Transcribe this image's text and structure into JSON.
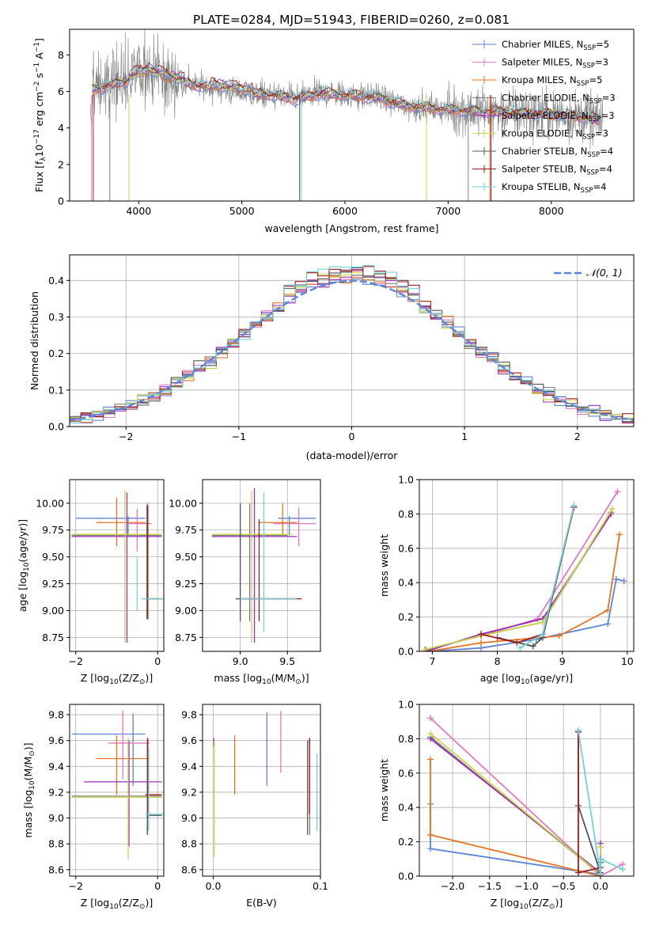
{
  "title": "PLATE=0284, MJD=51943, FIBERID=0260, z=0.081",
  "colors": {
    "chabrier_miles": "#5b86d8",
    "salpeter_miles": "#e377c2",
    "kroupa_miles": "#e8731f",
    "chabrier_elodie": "#7f7f7f",
    "salpeter_elodie": "#9a2fb5",
    "kroupa_elodie": "#c9d64a",
    "chabrier_stelib": "#555555",
    "salpeter_stelib": "#a11a1a",
    "kroupa_stelib": "#6fd2dc",
    "normal": "#5b86d8"
  },
  "chart_data": [
    {
      "id": "spectrum",
      "type": "line",
      "xlabel": "wavelength [Angstrom, rest frame]",
      "ylabel": "Flux [f_λ 10^-17 erg cm^-2 s^-1 A^-1]",
      "xlim": [
        3330,
        8800
      ],
      "ylim": [
        0,
        9.4
      ],
      "xticks": [
        4000,
        5000,
        6000,
        7000,
        8000
      ],
      "yticks": [
        0,
        2,
        4,
        6,
        8
      ],
      "grid": false,
      "legend_position": "top-right",
      "legend": [
        {
          "label": "Chabrier MILES, N",
          "sub": "SSP",
          "suffix": "=5",
          "color": "#5b86d8"
        },
        {
          "label": "Salpeter MILES, N",
          "sub": "SSP",
          "suffix": "=3",
          "color": "#e377c2"
        },
        {
          "label": "Kroupa MILES, N",
          "sub": "SSP",
          "suffix": "=5",
          "color": "#e8731f"
        },
        {
          "label": "Chabrier ELODIE, N",
          "sub": "SSP",
          "suffix": "=3",
          "color": "#7f7f7f"
        },
        {
          "label": "Salpeter ELODIE, N",
          "sub": "SSP",
          "suffix": "=3",
          "color": "#9a2fb5"
        },
        {
          "label": "Kroupa ELODIE, N",
          "sub": "SSP",
          "suffix": "=3",
          "color": "#c9d64a"
        },
        {
          "label": "Chabrier STELIB, N",
          "sub": "SSP",
          "suffix": "=4",
          "color": "#555555"
        },
        {
          "label": "Salpeter STELIB, N",
          "sub": "SSP",
          "suffix": "=4",
          "color": "#a11a1a"
        },
        {
          "label": "Kroupa STELIB, N",
          "sub": "SSP",
          "suffix": "=4",
          "color": "#6fd2dc"
        }
      ],
      "continuum": [
        [
          3550,
          6.1
        ],
        [
          3700,
          6.3
        ],
        [
          3900,
          6.6
        ],
        [
          4100,
          7.0
        ],
        [
          4300,
          6.6
        ],
        [
          4500,
          6.4
        ],
        [
          4800,
          6.1
        ],
        [
          5000,
          5.9
        ],
        [
          5300,
          5.8
        ],
        [
          5500,
          5.6
        ],
        [
          5800,
          5.9
        ],
        [
          6000,
          5.8
        ],
        [
          6300,
          5.7
        ],
        [
          6600,
          5.2
        ],
        [
          7000,
          5.0
        ],
        [
          7400,
          4.9
        ],
        [
          7800,
          4.8
        ],
        [
          8200,
          4.7
        ],
        [
          8500,
          4.4
        ]
      ]
    },
    {
      "id": "residual_histogram",
      "type": "line",
      "xlabel": "(data-model)/error",
      "ylabel": "Normed distribution",
      "xlim": [
        -2.5,
        2.5
      ],
      "ylim": [
        0,
        0.47
      ],
      "xticks": [
        -2,
        -1,
        0,
        1,
        2
      ],
      "yticks": [
        0.0,
        0.1,
        0.2,
        0.3,
        0.4
      ],
      "grid": true,
      "legend_position": "top-right",
      "legend_label": "𝒩(0, 1)",
      "normal_curve": {
        "mean": 0,
        "sigma": 1
      }
    },
    {
      "id": "age_vs_Z",
      "type": "scatter",
      "xlabel": "Z [log10(Z/Z⊙)]",
      "ylabel": "age [log10(age/yr)]",
      "xlim": [
        -2.15,
        0.15
      ],
      "ylim": [
        8.62,
        10.22
      ],
      "xticks": [
        -2,
        0
      ],
      "yticks": [
        8.75,
        9.0,
        9.25,
        9.5,
        9.75,
        10.0
      ],
      "grid": true
    },
    {
      "id": "age_vs_mass",
      "type": "scatter",
      "xlabel": "mass [log10(M/M⊙)]",
      "ylabel": "",
      "xlim": [
        8.6,
        9.85
      ],
      "ylim": [
        8.62,
        10.22
      ],
      "xticks": [
        9.0,
        9.5
      ],
      "yticks": [
        8.75,
        9.0,
        9.25,
        9.5,
        9.75,
        10.0
      ],
      "grid": true
    },
    {
      "id": "mass_weight_vs_age",
      "type": "line",
      "xlabel": "age [log10(age/yr)]",
      "ylabel": "mass weight",
      "xlim": [
        6.8,
        10.1
      ],
      "ylim": [
        0,
        1
      ],
      "xticks": [
        7,
        8,
        9,
        10
      ],
      "yticks": [
        0.0,
        0.2,
        0.4,
        0.6,
        0.8,
        1.0
      ],
      "grid": true,
      "series": [
        {
          "color": "#5b86d8",
          "x": [
            6.95,
            7.75,
            8.6,
            9.7,
            9.83,
            9.95
          ],
          "y": [
            0.0,
            0.02,
            0.07,
            0.16,
            0.42,
            0.41
          ]
        },
        {
          "color": "#e377c2",
          "x": [
            7.75,
            8.62,
            9.85
          ],
          "y": [
            0.09,
            0.19,
            0.93
          ]
        },
        {
          "color": "#e8731f",
          "x": [
            6.95,
            7.75,
            8.95,
            9.7,
            9.88
          ],
          "y": [
            0.0,
            0.05,
            0.09,
            0.24,
            0.68
          ]
        },
        {
          "color": "#7f7f7f",
          "x": [
            6.9,
            7.75,
            8.7,
            9.75
          ],
          "y": [
            0.01,
            0.09,
            0.17,
            0.81
          ]
        },
        {
          "color": "#9a2fb5",
          "x": [
            6.9,
            7.75,
            8.7,
            9.75
          ],
          "y": [
            0.0,
            0.1,
            0.19,
            0.8
          ]
        },
        {
          "color": "#c9d64a",
          "x": [
            6.88,
            7.75,
            8.7,
            9.77
          ],
          "y": [
            0.01,
            0.09,
            0.17,
            0.83
          ]
        },
        {
          "color": "#555555",
          "x": [
            8.0,
            8.55,
            8.7,
            9.18
          ],
          "y": [
            0.08,
            0.03,
            0.08,
            0.84
          ]
        },
        {
          "color": "#a11a1a",
          "x": [
            7.75,
            8.3,
            8.7,
            9.18
          ],
          "y": [
            0.1,
            0.05,
            0.1,
            0.84
          ]
        },
        {
          "color": "#6fd2dc",
          "x": [
            8.35,
            8.7,
            9.18
          ],
          "y": [
            0.02,
            0.1,
            0.85
          ]
        }
      ]
    },
    {
      "id": "mass_vs_Z",
      "type": "scatter",
      "xlabel": "Z [log10(Z/Z⊙)]",
      "ylabel": "mass [log10(M/M⊙)]",
      "xlim": [
        -2.15,
        0.15
      ],
      "ylim": [
        8.55,
        9.88
      ],
      "xticks": [
        -2,
        0
      ],
      "yticks": [
        8.6,
        8.8,
        9.0,
        9.2,
        9.4,
        9.6,
        9.8
      ],
      "grid": true
    },
    {
      "id": "mass_vs_ebv",
      "type": "scatter",
      "xlabel": "E(B-V)",
      "ylabel": "",
      "xlim": [
        -0.01,
        0.1
      ],
      "ylim": [
        8.55,
        9.88
      ],
      "xticks": [
        0.0,
        0.1
      ],
      "yticks": [
        8.6,
        8.8,
        9.0,
        9.2,
        9.4,
        9.6,
        9.8
      ],
      "grid": true,
      "errorbars": [
        {
          "color": "#5b86d8",
          "x": 0.05,
          "y0": 9.25,
          "y1": 9.82
        },
        {
          "color": "#e377c2",
          "x": 0.063,
          "y0": 9.35,
          "y1": 9.83
        },
        {
          "color": "#e8731f",
          "x": 0.02,
          "y0": 9.18,
          "y1": 9.64
        },
        {
          "color": "#7f7f7f",
          "x": 0.09,
          "y0": 8.87,
          "y1": 9.62
        },
        {
          "color": "#a11a1a",
          "x": 0.0898,
          "y0": 9.03,
          "y1": 9.62
        },
        {
          "color": "#555555",
          "x": 0.088,
          "y0": 8.87,
          "y1": 9.6
        },
        {
          "color": "#6fd2dc",
          "x": 0.0968,
          "y0": 8.9,
          "y1": 9.5
        },
        {
          "color": "#9a2fb5",
          "x": 0.0005,
          "y0": 9.55,
          "y1": 9.62
        },
        {
          "color": "#c9d64a",
          "x": 0.001,
          "y0": 8.7,
          "y1": 9.6
        }
      ]
    },
    {
      "id": "mass_weight_vs_Z",
      "type": "line",
      "xlabel": "Z [log10(Z/Z⊙)]",
      "ylabel": "mass weight",
      "xlim": [
        -2.45,
        0.45
      ],
      "ylim": [
        0,
        1
      ],
      "xticks": [
        -2.0,
        -1.5,
        -1.0,
        -0.5,
        0.0
      ],
      "yticks": [
        0.0,
        0.2,
        0.4,
        0.6,
        0.8,
        1.0
      ],
      "grid": true,
      "series": [
        {
          "color": "#5b86d8",
          "x": [
            -2.3,
            -2.3,
            0.0
          ],
          "y": [
            0.42,
            0.16,
            0.01
          ]
        },
        {
          "color": "#e377c2",
          "x": [
            -2.3,
            0.0,
            0.3
          ],
          "y": [
            0.92,
            0.0,
            0.07
          ]
        },
        {
          "color": "#e8731f",
          "x": [
            -2.3,
            -2.3,
            0.0
          ],
          "y": [
            0.68,
            0.24,
            0.0
          ]
        },
        {
          "color": "#7f7f7f",
          "x": [
            -2.3,
            0.0,
            0.0
          ],
          "y": [
            0.81,
            0.01,
            0.17
          ]
        },
        {
          "color": "#9a2fb5",
          "x": [
            -2.3,
            0.0,
            0.0
          ],
          "y": [
            0.8,
            0.02,
            0.19
          ]
        },
        {
          "color": "#c9d64a",
          "x": [
            -2.3,
            0.0,
            0.0
          ],
          "y": [
            0.83,
            0.01,
            0.17
          ]
        },
        {
          "color": "#555555",
          "x": [
            -0.3,
            -0.3,
            0.0,
            0.0
          ],
          "y": [
            0.84,
            0.41,
            0.02,
            0.08
          ]
        },
        {
          "color": "#a11a1a",
          "x": [
            -0.3,
            -0.3,
            0.0,
            0.0
          ],
          "y": [
            0.84,
            0.02,
            0.05,
            0.1
          ]
        },
        {
          "color": "#6fd2dc",
          "x": [
            -0.3,
            0.0,
            0.0,
            0.3
          ],
          "y": [
            0.85,
            0.01,
            0.1,
            0.04
          ]
        }
      ]
    }
  ]
}
